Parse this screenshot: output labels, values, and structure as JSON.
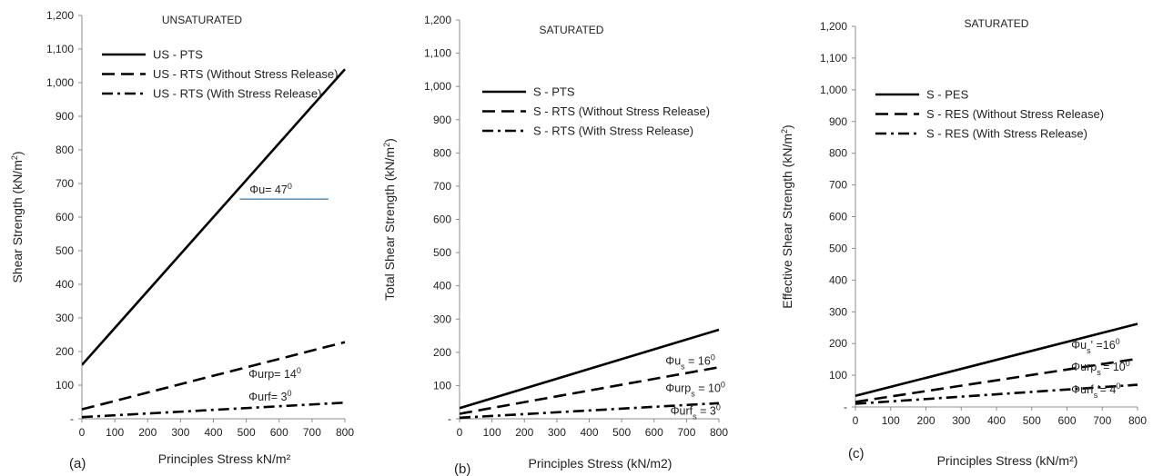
{
  "chart_data": [
    {
      "type": "line",
      "panel_letter": "(a)",
      "title": "UNSATURATED",
      "xlabel": "Principles Stress kN/m²",
      "ylabel_parts": [
        "Shear Strength   (kN/m",
        "2",
        ")"
      ],
      "xlim": [
        0,
        800
      ],
      "ylim": [
        0,
        1200
      ],
      "x_ticks": [
        "0",
        "100",
        "200",
        "300",
        "400",
        "500",
        "600",
        "700",
        "800"
      ],
      "y_ticks": [
        "-",
        "100",
        "200",
        "300",
        "400",
        "500",
        "600",
        "700",
        "800",
        "900",
        "1,000",
        "1,100",
        "1,200"
      ],
      "legend_position": "top-left",
      "series": [
        {
          "name": "US - PTS",
          "style": "solid",
          "x": [
            0,
            800
          ],
          "y": [
            160,
            1040
          ]
        },
        {
          "name": "US - RTS (Without Stress Release)",
          "style": "dashed",
          "x": [
            0,
            800
          ],
          "y": [
            28,
            228
          ]
        },
        {
          "name": "US - RTS (With Stress Release)",
          "style": "dashdot",
          "x": [
            0,
            800
          ],
          "y": [
            5,
            48
          ]
        }
      ],
      "annotations": [
        {
          "base": "Φu= 47",
          "sub": "",
          "sup": "0",
          "x": 510,
          "y": 670
        },
        {
          "base": "Φurp= 14",
          "sub": "",
          "sup": "0",
          "x": 507,
          "y": 122
        },
        {
          "base": "Φurf= 3",
          "sub": "",
          "sup": "0",
          "x": 507,
          "y": 54
        }
      ]
    },
    {
      "type": "line",
      "panel_letter": "(b)",
      "title": "SATURATED",
      "xlabel": "Principles Stress (kN/m2)",
      "ylabel_parts": [
        "Total Shear  Strength (kN/m",
        "2",
        ")"
      ],
      "xlim": [
        0,
        800
      ],
      "ylim": [
        0,
        1200
      ],
      "x_ticks": [
        "0",
        "100",
        "200",
        "300",
        "400",
        "500",
        "600",
        "700",
        "800"
      ],
      "y_ticks": [
        "-",
        "100",
        "200",
        "300",
        "400",
        "500",
        "600",
        "700",
        "800",
        "900",
        "1,000",
        "1,100",
        "1,200"
      ],
      "legend_position": "top-left",
      "series": [
        {
          "name": "S - PTS",
          "style": "solid",
          "x": [
            0,
            800
          ],
          "y": [
            32,
            268
          ]
        },
        {
          "name": "S - RTS (Without Stress Release)",
          "style": "dashed",
          "x": [
            0,
            800
          ],
          "y": [
            15,
            155
          ]
        },
        {
          "name": "S - RTS (With Stress Release)",
          "style": "dashdot",
          "x": [
            0,
            800
          ],
          "y": [
            3,
            47
          ]
        }
      ],
      "annotations": [
        {
          "base": "Φu",
          "sub": "s",
          "sup": "",
          "tail": " = 16",
          "sup2": "0",
          "x": 635,
          "y": 162
        },
        {
          "base": "Φurp",
          "sub": "s",
          "sup": "",
          "tail": " = 10",
          "sup2": "0",
          "x": 635,
          "y": 81
        },
        {
          "base": "Φurf",
          "sub": "s",
          "sup": "",
          "tail": " = 3",
          "sup2": "0",
          "x": 650,
          "y": 12
        }
      ]
    },
    {
      "type": "line",
      "panel_letter": "(c)",
      "title": "SATURATED",
      "xlabel": "Principles Stress (kN/m²)",
      "ylabel_parts": [
        "Effective Shear  Strength (kN/m",
        "2",
        ")"
      ],
      "xlim": [
        0,
        800
      ],
      "ylim": [
        0,
        1200
      ],
      "x_ticks": [
        "0",
        "100",
        "200",
        "300",
        "400",
        "500",
        "600",
        "700",
        "800"
      ],
      "y_ticks": [
        "-",
        "100",
        "200",
        "300",
        "400",
        "500",
        "600",
        "700",
        "800",
        "900",
        "1,000",
        "1,100",
        "1,200"
      ],
      "legend_position": "top-left",
      "series": [
        {
          "name": "S - PES",
          "style": "solid",
          "x": [
            0,
            800
          ],
          "y": [
            35,
            262
          ]
        },
        {
          "name": "S - RES (Without Stress Release)",
          "style": "dashed",
          "x": [
            0,
            800
          ],
          "y": [
            16,
            152
          ]
        },
        {
          "name": "S - RES (With Stress Release)",
          "style": "dashdot",
          "x": [
            0,
            800
          ],
          "y": [
            10,
            70
          ]
        }
      ],
      "annotations": [
        {
          "base": "Φu",
          "sub": "s",
          "sup": "",
          "tail": "' =16",
          "sup2": "0",
          "x": 612,
          "y": 184
        },
        {
          "base": "Φurp",
          "sub": "s",
          "sup": "",
          "tail": "'= 10",
          "sup2": "0",
          "x": 612,
          "y": 115
        },
        {
          "base": "Φurf",
          "sub": "s",
          "sup": "",
          "tail": "'= 4",
          "sup2": "0",
          "x": 612,
          "y": 43
        }
      ]
    }
  ]
}
